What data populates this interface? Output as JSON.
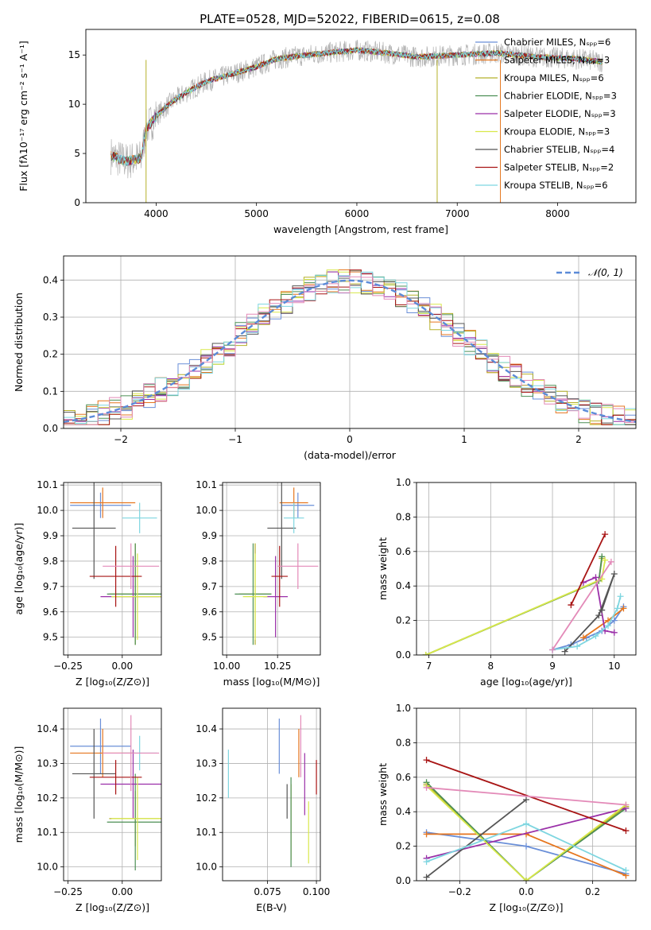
{
  "title": "PLATE=0528, MJD=52022, FIBERID=0615, z=0.08",
  "colors": [
    "#6a8fd8",
    "#e6761f",
    "#b5b02a",
    "#4d8f55",
    "#9a2fa8",
    "#d8e84a",
    "#555555",
    "#a81414",
    "#7ed6e0",
    "#e38ab8",
    "#b3b3b3"
  ],
  "chart_data": [
    {
      "id": "spectrum",
      "type": "line",
      "title": "PLATE=0528, MJD=52022, FIBERID=0615, z=0.08",
      "xlabel": "wavelength [Angstrom, rest frame]",
      "ylabel": "Flux [fλ10⁻¹⁷ erg cm⁻² s⁻¹ A⁻¹]",
      "xlim": [
        3300,
        8780
      ],
      "ylim": [
        0,
        17.6
      ],
      "xticks": [
        4000,
        5000,
        6000,
        7000,
        8000
      ],
      "yticks": [
        0,
        5,
        10,
        15
      ],
      "grid": false,
      "legend_position": "top-right",
      "legend": [
        {
          "label": "Chabrier MILES, Nₛₚₚ=6",
          "color": "#6a8fd8"
        },
        {
          "label": "Salpeter MILES, Nₛₚₚ=3",
          "color": "#e6761f"
        },
        {
          "label": "Kroupa MILES, Nₛₚₚ=6",
          "color": "#b5b02a"
        },
        {
          "label": "Chabrier ELODIE, Nₛₚₚ=3",
          "color": "#4d8f55"
        },
        {
          "label": "Salpeter ELODIE, Nₛₚₚ=3",
          "color": "#9a2fa8"
        },
        {
          "label": "Kroupa ELODIE, Nₛₚₚ=3",
          "color": "#d8e84a"
        },
        {
          "label": "Chabrier STELIB, Nₛₚₚ=4",
          "color": "#555555"
        },
        {
          "label": "Salpeter STELIB, Nₛₚₚ=2",
          "color": "#a81414"
        },
        {
          "label": "Kroupa STELIB, Nₛₚₚ=6",
          "color": "#7ed6e0"
        }
      ],
      "continuum": {
        "x": [
          3550,
          3700,
          3850,
          3900,
          4000,
          4150,
          4300,
          4500,
          4800,
          5000,
          5200,
          5500,
          5800,
          6000,
          6300,
          6600,
          7000,
          7400,
          7800,
          8200,
          8450
        ],
        "y": [
          4.8,
          4.2,
          4.5,
          7.5,
          8.8,
          10.2,
          11.2,
          12.3,
          13.2,
          13.8,
          14.6,
          15.0,
          15.3,
          15.5,
          15.2,
          14.8,
          15.0,
          15.2,
          14.8,
          14.6,
          14.3
        ]
      }
    },
    {
      "id": "residuals",
      "type": "step",
      "xlabel": "(data-model)/error",
      "ylabel": "Normed distribution",
      "xlim": [
        -2.5,
        2.5
      ],
      "ylim": [
        0,
        0.465
      ],
      "xticks": [
        -2,
        -1,
        0,
        1,
        2
      ],
      "yticks": [
        0.0,
        0.1,
        0.2,
        0.3,
        0.4
      ],
      "grid": true,
      "legend_position": "top-right",
      "legend": [
        {
          "label": "𝒩(0, 1)",
          "color": "#5b8bd8"
        }
      ],
      "bin_width": 0.1
    },
    {
      "id": "age-vs-Z",
      "type": "errorbar",
      "xlabel": "Z [log₁₀(Z/Z⊙)]",
      "ylabel": "age  [log₁₀(age/yr)]",
      "xlim": [
        -0.27,
        0.18
      ],
      "ylim": [
        9.43,
        10.11
      ],
      "xticks": [
        -0.25,
        0.0
      ],
      "yticks": [
        9.5,
        9.6,
        9.7,
        9.8,
        9.9,
        10.0,
        10.1
      ],
      "points": [
        {
          "x": -0.1,
          "xerr": 0.14,
          "y": 10.02,
          "yerr": 0.05,
          "color": "#6a8fd8"
        },
        {
          "x": -0.09,
          "xerr": 0.15,
          "y": 10.03,
          "yerr": 0.06,
          "color": "#e6761f"
        },
        {
          "x": 0.06,
          "xerr": 0.12,
          "y": 9.67,
          "yerr": 0.2,
          "color": "#b5b02a"
        },
        {
          "x": 0.06,
          "xerr": 0.13,
          "y": 9.67,
          "yerr": 0.2,
          "color": "#4d8f55"
        },
        {
          "x": 0.05,
          "xerr": 0.15,
          "y": 9.66,
          "yerr": 0.16,
          "color": "#9a2fa8"
        },
        {
          "x": 0.07,
          "xerr": 0.12,
          "y": 9.66,
          "yerr": 0.17,
          "color": "#d8e84a"
        },
        {
          "x": -0.13,
          "xerr": 0.1,
          "y": 9.93,
          "yerr": 0.2,
          "color": "#555555"
        },
        {
          "x": -0.03,
          "xerr": 0.12,
          "y": 9.74,
          "yerr": 0.12,
          "color": "#a81414"
        },
        {
          "x": 0.08,
          "xerr": 0.08,
          "y": 9.97,
          "yerr": 0.06,
          "color": "#7ed6e0"
        },
        {
          "x": 0.04,
          "xerr": 0.13,
          "y": 9.78,
          "yerr": 0.09,
          "color": "#e38ab8"
        }
      ]
    },
    {
      "id": "age-vs-mass",
      "type": "errorbar",
      "xlabel": "mass [log₁₀(M/M⊙)]",
      "ylabel": "",
      "xlim": [
        9.98,
        10.46
      ],
      "ylim": [
        9.43,
        10.11
      ],
      "xticks": [
        10.0,
        10.25
      ],
      "yticks": [
        9.5,
        9.6,
        9.7,
        9.8,
        9.9,
        10.0,
        10.1
      ],
      "points": [
        {
          "x": 10.35,
          "xerr": 0.08,
          "y": 10.02,
          "yerr": 0.05,
          "color": "#6a8fd8"
        },
        {
          "x": 10.33,
          "xerr": 0.07,
          "y": 10.03,
          "yerr": 0.06,
          "color": "#e6761f"
        },
        {
          "x": 10.14,
          "xerr": 0.08,
          "y": 9.67,
          "yerr": 0.2,
          "color": "#b5b02a"
        },
        {
          "x": 10.13,
          "xerr": 0.09,
          "y": 9.67,
          "yerr": 0.2,
          "color": "#4d8f55"
        },
        {
          "x": 10.24,
          "xerr": 0.06,
          "y": 9.66,
          "yerr": 0.16,
          "color": "#9a2fa8"
        },
        {
          "x": 10.14,
          "xerr": 0.06,
          "y": 9.66,
          "yerr": 0.17,
          "color": "#d8e84a"
        },
        {
          "x": 10.27,
          "xerr": 0.07,
          "y": 9.93,
          "yerr": 0.2,
          "color": "#555555"
        },
        {
          "x": 10.26,
          "xerr": 0.04,
          "y": 9.74,
          "yerr": 0.12,
          "color": "#a81414"
        },
        {
          "x": 10.33,
          "xerr": 0.05,
          "y": 9.97,
          "yerr": 0.06,
          "color": "#7ed6e0"
        },
        {
          "x": 10.35,
          "xerr": 0.1,
          "y": 9.78,
          "yerr": 0.09,
          "color": "#e38ab8"
        }
      ]
    },
    {
      "id": "weight-vs-age",
      "type": "line",
      "xlabel": "age  [log₁₀(age/yr)]",
      "ylabel": "mass weight",
      "xlim": [
        6.8,
        10.35
      ],
      "ylim": [
        0.0,
        1.0
      ],
      "xticks": [
        7,
        8,
        9,
        10
      ],
      "yticks": [
        0.0,
        0.2,
        0.4,
        0.6,
        0.8,
        1.0
      ],
      "grid": true,
      "series": [
        {
          "color": "#6a8fd8",
          "x": [
            9.0,
            9.3,
            9.55,
            9.8,
            10.0,
            10.15
          ],
          "y": [
            0.03,
            0.06,
            0.1,
            0.14,
            0.2,
            0.28
          ]
        },
        {
          "color": "#e6761f",
          "x": [
            9.5,
            9.9,
            10.15
          ],
          "y": [
            0.1,
            0.2,
            0.27
          ]
        },
        {
          "color": "#b5b02a",
          "x": [
            6.95,
            9.75,
            9.8
          ],
          "y": [
            0.0,
            0.43,
            0.56
          ]
        },
        {
          "color": "#4d8f55",
          "x": [
            6.95,
            9.75,
            9.8
          ],
          "y": [
            0.0,
            0.43,
            0.57
          ]
        },
        {
          "color": "#9a2fa8",
          "x": [
            9.5,
            9.7,
            9.85,
            10.0
          ],
          "y": [
            0.42,
            0.45,
            0.14,
            0.13
          ]
        },
        {
          "color": "#d8e84a",
          "x": [
            6.95,
            9.8,
            9.85
          ],
          "y": [
            0.0,
            0.44,
            0.55
          ]
        },
        {
          "color": "#555555",
          "x": [
            9.2,
            9.75,
            10.0,
            9.8
          ],
          "y": [
            0.02,
            0.23,
            0.47,
            0.26
          ]
        },
        {
          "color": "#a81414",
          "x": [
            9.3,
            9.85
          ],
          "y": [
            0.29,
            0.7
          ]
        },
        {
          "color": "#7ed6e0",
          "x": [
            9.0,
            9.4,
            9.7,
            9.9,
            10.05,
            10.1
          ],
          "y": [
            0.03,
            0.05,
            0.11,
            0.17,
            0.27,
            0.34
          ]
        },
        {
          "color": "#e38ab8",
          "x": [
            9.0,
            9.95
          ],
          "y": [
            0.03,
            0.54
          ]
        }
      ]
    },
    {
      "id": "mass-vs-Z",
      "type": "errorbar",
      "xlabel": "Z [log₁₀(Z/Z⊙)]",
      "ylabel": "mass [log₁₀(M/M⊙)]",
      "xlim": [
        -0.27,
        0.18
      ],
      "ylim": [
        9.96,
        10.46
      ],
      "xticks": [
        -0.25,
        0.0
      ],
      "yticks": [
        10.0,
        10.1,
        10.2,
        10.3,
        10.4
      ],
      "points": [
        {
          "x": -0.1,
          "xerr": 0.14,
          "y": 10.35,
          "yerr": 0.08,
          "color": "#6a8fd8"
        },
        {
          "x": -0.09,
          "xerr": 0.15,
          "y": 10.33,
          "yerr": 0.07,
          "color": "#e6761f"
        },
        {
          "x": 0.06,
          "xerr": 0.12,
          "y": 10.14,
          "yerr": 0.08,
          "color": "#b5b02a"
        },
        {
          "x": 0.06,
          "xerr": 0.13,
          "y": 10.13,
          "yerr": 0.14,
          "color": "#4d8f55"
        },
        {
          "x": 0.05,
          "xerr": 0.15,
          "y": 10.24,
          "yerr": 0.1,
          "color": "#9a2fa8"
        },
        {
          "x": 0.07,
          "xerr": 0.12,
          "y": 10.14,
          "yerr": 0.12,
          "color": "#d8e84a"
        },
        {
          "x": -0.13,
          "xerr": 0.1,
          "y": 10.27,
          "yerr": 0.13,
          "color": "#555555"
        },
        {
          "x": -0.03,
          "xerr": 0.12,
          "y": 10.26,
          "yerr": 0.05,
          "color": "#a81414"
        },
        {
          "x": 0.08,
          "xerr": 0.08,
          "y": 10.33,
          "yerr": 0.05,
          "color": "#7ed6e0"
        },
        {
          "x": 0.04,
          "xerr": 0.13,
          "y": 10.33,
          "yerr": 0.11,
          "color": "#e38ab8"
        }
      ]
    },
    {
      "id": "mass-vs-ebv",
      "type": "errorbar",
      "xlabel": "E(B-V)",
      "ylabel": "",
      "xlim": [
        0.052,
        0.102
      ],
      "ylim": [
        9.96,
        10.46
      ],
      "xticks": [
        0.075,
        0.1
      ],
      "yticks": [
        10.0,
        10.1,
        10.2,
        10.3,
        10.4
      ],
      "points": [
        {
          "x": 0.081,
          "xerr": 0,
          "y": 10.35,
          "yerr": 0.08,
          "color": "#6a8fd8"
        },
        {
          "x": 0.091,
          "xerr": 0,
          "y": 10.33,
          "yerr": 0.07,
          "color": "#e6761f"
        },
        {
          "x": 0.087,
          "xerr": 0,
          "y": 10.13,
          "yerr": 0.11,
          "color": "#b5b02a"
        },
        {
          "x": 0.087,
          "xerr": 0,
          "y": 10.13,
          "yerr": 0.13,
          "color": "#4d8f55"
        },
        {
          "x": 0.094,
          "xerr": 0,
          "y": 10.24,
          "yerr": 0.09,
          "color": "#9a2fa8"
        },
        {
          "x": 0.096,
          "xerr": 0,
          "y": 10.1,
          "yerr": 0.09,
          "color": "#d8e84a"
        },
        {
          "x": 0.085,
          "xerr": 0,
          "y": 10.19,
          "yerr": 0.05,
          "color": "#555555"
        },
        {
          "x": 0.1,
          "xerr": 0,
          "y": 10.26,
          "yerr": 0.05,
          "color": "#a81414"
        },
        {
          "x": 0.055,
          "xerr": 0,
          "y": 10.27,
          "yerr": 0.07,
          "color": "#7ed6e0"
        },
        {
          "x": 0.092,
          "xerr": 0,
          "y": 10.35,
          "yerr": 0.09,
          "color": "#e38ab8"
        }
      ]
    },
    {
      "id": "weight-vs-Z",
      "type": "line",
      "xlabel": "Z [log₁₀(Z/Z⊙)]",
      "ylabel": "mass weight",
      "xlim": [
        -0.33,
        0.33
      ],
      "ylim": [
        0.0,
        1.0
      ],
      "xticks": [
        -0.2,
        0.0,
        0.2
      ],
      "yticks": [
        0.0,
        0.2,
        0.4,
        0.6,
        0.8,
        1.0
      ],
      "grid": true,
      "series": [
        {
          "color": "#6a8fd8",
          "x": [
            -0.3,
            0.0,
            0.3
          ],
          "y": [
            0.28,
            0.2,
            0.04
          ]
        },
        {
          "color": "#e6761f",
          "x": [
            -0.3,
            0.0,
            0.3
          ],
          "y": [
            0.27,
            0.27,
            0.03
          ]
        },
        {
          "color": "#b5b02a",
          "x": [
            -0.3,
            0.0,
            0.3
          ],
          "y": [
            0.56,
            0.0,
            0.43
          ]
        },
        {
          "color": "#4d8f55",
          "x": [
            -0.3,
            0.0,
            0.3
          ],
          "y": [
            0.57,
            0.0,
            0.42
          ]
        },
        {
          "color": "#9a2fa8",
          "x": [
            -0.3,
            0.3
          ],
          "y": [
            0.13,
            0.42
          ]
        },
        {
          "color": "#d8e84a",
          "x": [
            -0.3,
            0.0,
            0.3
          ],
          "y": [
            0.55,
            0.0,
            0.44
          ]
        },
        {
          "color": "#555555",
          "x": [
            -0.3,
            0.0
          ],
          "y": [
            0.02,
            0.47
          ]
        },
        {
          "color": "#a81414",
          "x": [
            -0.3,
            0.3
          ],
          "y": [
            0.7,
            0.29
          ]
        },
        {
          "color": "#7ed6e0",
          "x": [
            -0.3,
            0.0,
            0.3
          ],
          "y": [
            0.11,
            0.33,
            0.06
          ]
        },
        {
          "color": "#e38ab8",
          "x": [
            -0.3,
            0.3
          ],
          "y": [
            0.54,
            0.44
          ]
        }
      ]
    }
  ]
}
